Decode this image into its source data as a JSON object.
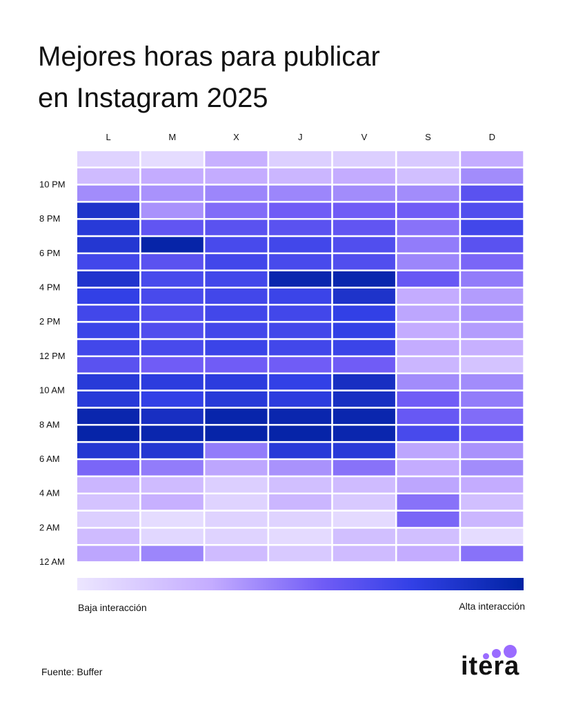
{
  "title_lines": [
    "Mejores horas para publicar",
    "en Instagram 2025"
  ],
  "legend": {
    "low_label": "Baja interacción",
    "high_label": "Alta interacción",
    "low_color": "#ece6ff",
    "high_color": "#0023a3"
  },
  "source": "Fuente: Buffer",
  "brand": {
    "name": "itera",
    "dot_color": "#9a6bff"
  },
  "chart_data": {
    "type": "heatmap",
    "title": "Mejores horas para publicar en Instagram 2025",
    "x_categories": [
      "L",
      "M",
      "X",
      "J",
      "V",
      "S",
      "D"
    ],
    "y_tick_labels": [
      "10 PM",
      "8 PM",
      "6 PM",
      "4 PM",
      "2 PM",
      "12 PM",
      "10 AM",
      "8 AM",
      "6 AM",
      "4 AM",
      "2 AM",
      "12 AM"
    ],
    "rows_order": "top row = 11 PM, bottom row = 12 AM (one row per hour)",
    "value_scale": "0 = baja interacción, 100 = alta interacción",
    "values": [
      [
        10,
        5,
        28,
        12,
        12,
        15,
        30
      ],
      [
        22,
        30,
        30,
        25,
        30,
        20,
        40
      ],
      [
        40,
        38,
        42,
        42,
        40,
        40,
        62
      ],
      [
        85,
        38,
        50,
        55,
        55,
        55,
        65
      ],
      [
        80,
        60,
        62,
        62,
        60,
        48,
        70
      ],
      [
        82,
        97,
        68,
        70,
        65,
        45,
        62
      ],
      [
        70,
        62,
        70,
        68,
        65,
        42,
        52
      ],
      [
        84,
        68,
        70,
        95,
        95,
        58,
        45
      ],
      [
        75,
        68,
        70,
        72,
        85,
        30,
        35
      ],
      [
        70,
        65,
        70,
        70,
        75,
        32,
        38
      ],
      [
        72,
        65,
        70,
        70,
        75,
        30,
        35
      ],
      [
        70,
        68,
        72,
        70,
        72,
        30,
        28
      ],
      [
        62,
        55,
        55,
        55,
        55,
        25,
        18
      ],
      [
        80,
        78,
        78,
        75,
        88,
        40,
        40
      ],
      [
        80,
        75,
        80,
        78,
        88,
        55,
        45
      ],
      [
        95,
        88,
        96,
        95,
        95,
        58,
        50
      ],
      [
        97,
        95,
        97,
        97,
        95,
        68,
        58
      ],
      [
        82,
        82,
        45,
        80,
        80,
        32,
        38
      ],
      [
        52,
        45,
        32,
        38,
        48,
        30,
        40
      ],
      [
        25,
        22,
        12,
        20,
        22,
        32,
        30
      ],
      [
        18,
        28,
        10,
        25,
        15,
        48,
        20
      ],
      [
        12,
        5,
        10,
        10,
        6,
        52,
        25
      ],
      [
        22,
        8,
        10,
        6,
        20,
        20,
        5
      ],
      [
        32,
        42,
        22,
        15,
        22,
        30,
        48
      ]
    ]
  }
}
